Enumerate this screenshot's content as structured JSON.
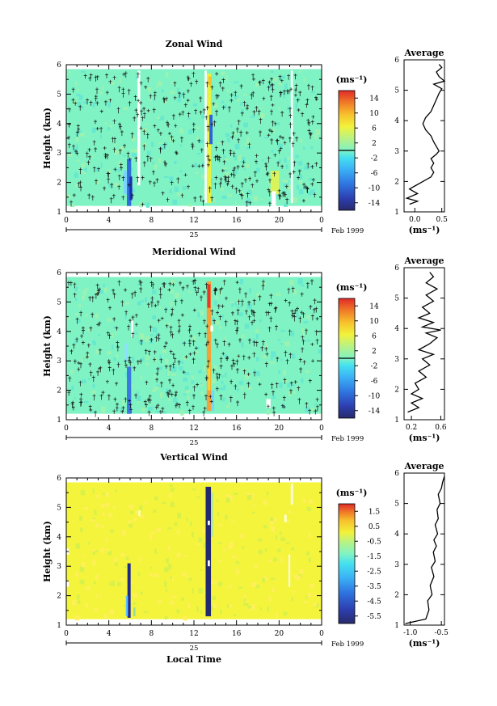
{
  "chart_data": [
    {
      "type": "heatmap",
      "title": "Zonal Wind",
      "ylabel": "Height (km)",
      "xlim": [
        0,
        24
      ],
      "ylim": [
        1,
        6
      ],
      "x_ticks": [
        "0",
        "4",
        "8",
        "12",
        "16",
        "20",
        "0"
      ],
      "y_ticks": [
        "1",
        "2",
        "3",
        "4",
        "5",
        "6"
      ],
      "date_label": "25",
      "date_suffix": "Feb 1999",
      "colorbar": {
        "unit": "(ms⁻¹)",
        "ticks": [
          "14",
          "10",
          "6",
          "2",
          "-2",
          "-6",
          "-10",
          "-14"
        ],
        "min": -16,
        "max": 16
      },
      "background": "#7ff3c4",
      "streaks": [
        {
          "x0": 5.7,
          "x1": 6.1,
          "y0": 1.2,
          "y1": 2.8,
          "color": "#2d6ed8"
        },
        {
          "x0": 5.95,
          "x1": 6.2,
          "y0": 1.4,
          "y1": 2.2,
          "color": "#1a2fb0"
        },
        {
          "x0": 5.4,
          "x1": 5.7,
          "y0": 1.6,
          "y1": 2.4,
          "color": "#7ad3ff"
        },
        {
          "x0": 13.2,
          "x1": 13.6,
          "y0": 1.3,
          "y1": 5.7,
          "color": "#e8f040"
        },
        {
          "x0": 13.45,
          "x1": 13.75,
          "y0": 3.3,
          "y1": 4.3,
          "color": "#2f62d9"
        },
        {
          "x0": 13.35,
          "x1": 13.65,
          "y0": 5.3,
          "y1": 5.6,
          "color": "#f6c230"
        },
        {
          "x0": 19.2,
          "x1": 20.0,
          "y0": 1.6,
          "y1": 2.4,
          "color": "#d9f35a"
        }
      ],
      "gaps": [
        {
          "x0": 6.7,
          "x1": 6.95,
          "y0": 1.9,
          "y1": 5.8
        },
        {
          "x0": 21.1,
          "x1": 21.3,
          "y0": 1.3,
          "y1": 5.8
        },
        {
          "x0": 19.3,
          "x1": 19.7,
          "y0": 1.2,
          "y1": 1.7
        },
        {
          "x0": 13.0,
          "x1": 13.2,
          "y0": 1.3,
          "y1": 5.8
        }
      ],
      "profile": {
        "title": "Average",
        "xlabel": "(ms⁻¹)",
        "xlim": [
          -0.2,
          0.55
        ],
        "ylim": [
          1,
          6
        ],
        "x_ticks": [
          {
            "v": 0.0,
            "t": "0.0"
          },
          {
            "v": 0.5,
            "t": "0.5"
          }
        ],
        "y_ticks": [
          "1",
          "2",
          "3",
          "4",
          "5",
          "6"
        ],
        "points": [
          [
            -0.1,
            1.25
          ],
          [
            0.05,
            1.35
          ],
          [
            -0.15,
            1.45
          ],
          [
            0.05,
            1.6
          ],
          [
            -0.1,
            1.75
          ],
          [
            0.0,
            1.85
          ],
          [
            0.15,
            2.0
          ],
          [
            0.3,
            2.15
          ],
          [
            0.35,
            2.3
          ],
          [
            0.3,
            2.45
          ],
          [
            0.35,
            2.6
          ],
          [
            0.3,
            2.75
          ],
          [
            0.4,
            2.9
          ],
          [
            0.45,
            3.0
          ],
          [
            0.4,
            3.15
          ],
          [
            0.35,
            3.3
          ],
          [
            0.3,
            3.5
          ],
          [
            0.2,
            3.7
          ],
          [
            0.15,
            3.9
          ],
          [
            0.2,
            4.1
          ],
          [
            0.3,
            4.3
          ],
          [
            0.35,
            4.5
          ],
          [
            0.4,
            4.7
          ],
          [
            0.45,
            4.9
          ],
          [
            0.5,
            5.05
          ],
          [
            0.35,
            5.2
          ],
          [
            0.55,
            5.3
          ],
          [
            0.45,
            5.45
          ],
          [
            0.4,
            5.6
          ],
          [
            0.5,
            5.75
          ],
          [
            0.45,
            5.85
          ]
        ]
      }
    },
    {
      "type": "heatmap",
      "title": "Meridional Wind",
      "ylabel": "Height (km)",
      "xlim": [
        0,
        24
      ],
      "ylim": [
        1,
        6
      ],
      "x_ticks": [
        "0",
        "4",
        "8",
        "12",
        "16",
        "20",
        "0"
      ],
      "y_ticks": [
        "1",
        "2",
        "3",
        "4",
        "5",
        "6"
      ],
      "date_label": "25",
      "date_suffix": "Feb 1999",
      "colorbar": {
        "unit": "(ms⁻¹)",
        "ticks": [
          "14",
          "10",
          "6",
          "2",
          "-2",
          "-6",
          "-10",
          "-14"
        ],
        "min": -16,
        "max": 16
      },
      "background": "#7ff3c4",
      "streaks": [
        {
          "x0": 5.7,
          "x1": 6.1,
          "y0": 1.2,
          "y1": 2.8,
          "color": "#3a7ae0"
        },
        {
          "x0": 5.5,
          "x1": 5.8,
          "y0": 3.0,
          "y1": 3.6,
          "color": "#8fe0ff"
        },
        {
          "x0": 13.2,
          "x1": 13.6,
          "y0": 1.3,
          "y1": 5.7,
          "color": "#f2a23a"
        },
        {
          "x0": 13.25,
          "x1": 13.55,
          "y0": 4.8,
          "y1": 5.6,
          "color": "#e33a2a"
        },
        {
          "x0": 13.25,
          "x1": 13.55,
          "y0": 2.0,
          "y1": 3.0,
          "color": "#f5d037"
        },
        {
          "x0": 13.6,
          "x1": 13.9,
          "y0": 1.3,
          "y1": 2.0,
          "color": "#6fd8ff"
        }
      ],
      "gaps": [
        {
          "x0": 6.1,
          "x1": 6.3,
          "y0": 3.8,
          "y1": 4.4
        },
        {
          "x0": 13.55,
          "x1": 13.8,
          "y0": 4.0,
          "y1": 4.2
        },
        {
          "x0": 18.8,
          "x1": 19.2,
          "y0": 1.4,
          "y1": 1.7
        }
      ],
      "profile": {
        "title": "Average",
        "xlabel": "(ms⁻¹)",
        "xlim": [
          0.1,
          0.65
        ],
        "ylim": [
          1,
          6
        ],
        "x_ticks": [
          {
            "v": 0.2,
            "t": "0.2"
          },
          {
            "v": 0.6,
            "t": "0.6"
          }
        ],
        "y_ticks": [
          "1",
          "2",
          "3",
          "4",
          "5",
          "6"
        ],
        "points": [
          [
            0.15,
            1.25
          ],
          [
            0.3,
            1.4
          ],
          [
            0.2,
            1.55
          ],
          [
            0.35,
            1.7
          ],
          [
            0.2,
            1.85
          ],
          [
            0.3,
            2.0
          ],
          [
            0.25,
            2.2
          ],
          [
            0.4,
            2.4
          ],
          [
            0.3,
            2.6
          ],
          [
            0.45,
            2.8
          ],
          [
            0.35,
            3.0
          ],
          [
            0.5,
            3.15
          ],
          [
            0.3,
            3.3
          ],
          [
            0.45,
            3.5
          ],
          [
            0.55,
            3.7
          ],
          [
            0.4,
            3.85
          ],
          [
            0.6,
            3.95
          ],
          [
            0.35,
            4.05
          ],
          [
            0.5,
            4.2
          ],
          [
            0.3,
            4.35
          ],
          [
            0.45,
            4.5
          ],
          [
            0.35,
            4.7
          ],
          [
            0.5,
            4.9
          ],
          [
            0.4,
            5.1
          ],
          [
            0.55,
            5.3
          ],
          [
            0.4,
            5.5
          ],
          [
            0.5,
            5.7
          ],
          [
            0.45,
            5.85
          ]
        ]
      }
    },
    {
      "type": "heatmap",
      "title": "Vertical Wind",
      "ylabel": "Height (km)",
      "xlabel": "Local Time",
      "xlim": [
        0,
        24
      ],
      "ylim": [
        1,
        6
      ],
      "x_ticks": [
        "0",
        "4",
        "8",
        "12",
        "16",
        "20",
        "0"
      ],
      "y_ticks": [
        "1",
        "2",
        "3",
        "4",
        "5",
        "6"
      ],
      "date_label": "25",
      "date_suffix": "Feb 1999",
      "colorbar": {
        "unit": "(ms⁻¹)",
        "ticks": [
          "1.5",
          "0.5",
          "-0.5",
          "-1.5",
          "-2.5",
          "-3.5",
          "-4.5",
          "-5.5"
        ],
        "min": -6,
        "max": 2
      },
      "background": "#f4f43c",
      "streaks": [
        {
          "x0": 5.75,
          "x1": 6.05,
          "y0": 1.25,
          "y1": 3.1,
          "color": "#1e2a8a"
        },
        {
          "x0": 5.6,
          "x1": 5.8,
          "y0": 1.3,
          "y1": 2.0,
          "color": "#5cc0ff"
        },
        {
          "x0": 13.1,
          "x1": 13.6,
          "y0": 1.3,
          "y1": 5.7,
          "color": "#22296e"
        },
        {
          "x0": 13.6,
          "x1": 13.8,
          "y0": 4.0,
          "y1": 5.5,
          "color": "#aee6a0"
        },
        {
          "x0": 6.3,
          "x1": 6.5,
          "y0": 1.3,
          "y1": 1.6,
          "color": "#9bdc9b"
        }
      ],
      "gaps": [
        {
          "x0": 6.8,
          "x1": 6.95,
          "y0": 4.7,
          "y1": 4.9
        },
        {
          "x0": 13.3,
          "x1": 13.5,
          "y0": 4.4,
          "y1": 4.55
        },
        {
          "x0": 13.3,
          "x1": 13.5,
          "y0": 3.0,
          "y1": 3.2
        },
        {
          "x0": 20.5,
          "x1": 20.7,
          "y0": 4.5,
          "y1": 4.75
        },
        {
          "x0": 20.9,
          "x1": 21.05,
          "y0": 2.3,
          "y1": 3.4
        },
        {
          "x0": 21.1,
          "x1": 21.3,
          "y0": 5.1,
          "y1": 5.8
        },
        {
          "x0": 0.0,
          "x1": 0.25,
          "y0": 3.4,
          "y1": 3.6
        },
        {
          "x0": 0.0,
          "x1": 0.25,
          "y0": 2.3,
          "y1": 2.5
        }
      ],
      "profile": {
        "title": "Average",
        "xlabel": "(ms⁻¹)",
        "xlim": [
          -1.1,
          -0.45
        ],
        "ylim": [
          1,
          6
        ],
        "x_ticks": [
          {
            "v": -1.0,
            "t": "-1.0"
          },
          {
            "v": -0.5,
            "t": "-0.5"
          }
        ],
        "y_ticks": [
          "1",
          "2",
          "3",
          "4",
          "5",
          "6"
        ],
        "points": [
          [
            -1.08,
            1.05
          ],
          [
            -0.75,
            1.2
          ],
          [
            -0.7,
            1.5
          ],
          [
            -0.72,
            1.8
          ],
          [
            -0.65,
            2.0
          ],
          [
            -0.68,
            2.3
          ],
          [
            -0.62,
            2.6
          ],
          [
            -0.66,
            2.9
          ],
          [
            -0.6,
            3.1
          ],
          [
            -0.63,
            3.4
          ],
          [
            -0.58,
            3.6
          ],
          [
            -0.62,
            3.8
          ],
          [
            -0.56,
            4.0
          ],
          [
            -0.6,
            4.3
          ],
          [
            -0.55,
            4.5
          ],
          [
            -0.57,
            4.8
          ],
          [
            -0.52,
            5.0
          ],
          [
            -0.55,
            5.3
          ],
          [
            -0.5,
            5.5
          ],
          [
            -0.48,
            5.7
          ],
          [
            -0.45,
            5.9
          ]
        ]
      }
    }
  ]
}
